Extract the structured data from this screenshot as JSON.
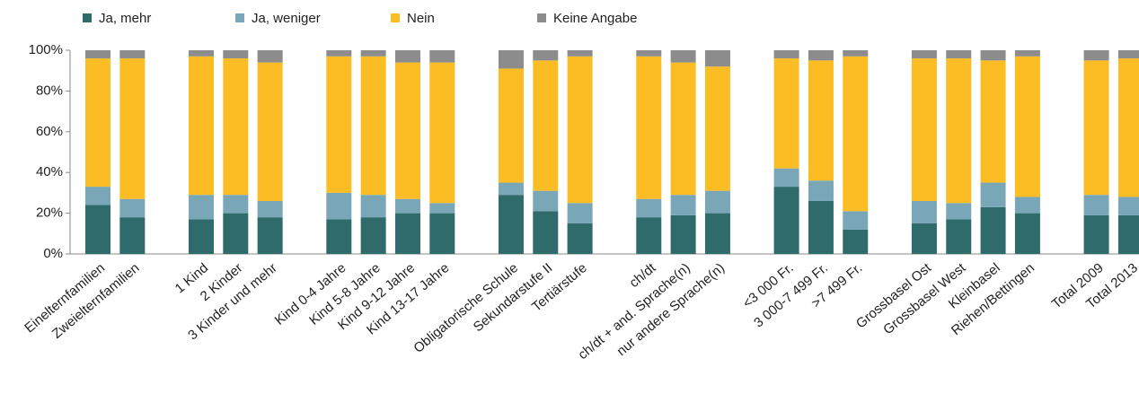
{
  "chart_data": {
    "type": "stacked_bar",
    "categories": [
      "Einelternfamilien",
      "Zweielternfamilien",
      null,
      "1 Kind",
      "2 Kinder",
      "3 Kinder und mehr",
      null,
      "Kind 0-4 Jahre",
      "Kind 5-8 Jahre",
      "Kind 9-12 Jahre",
      "Kind 13-17 Jahre",
      null,
      "Obligatorische Schule",
      "Sekundarstufe II",
      "Tertiärstufe",
      null,
      "ch/dt",
      "ch/dt + and. Sprache(n)",
      "nur andere Sprache(n)",
      null,
      "<3 000 Fr.",
      "3 000-7 499 Fr.",
      ">7 499 Fr.",
      null,
      "Grossbasel Ost",
      "Grossbasel West",
      "Kleinbasel",
      "Riehen/Bettingen",
      null,
      "Total 2009",
      "Total 2013"
    ],
    "series": [
      {
        "name": "Ja, mehr",
        "color": "#2f6b6b",
        "values": [
          24,
          18,
          null,
          17,
          20,
          18,
          null,
          17,
          18,
          20,
          20,
          null,
          29,
          21,
          15,
          null,
          18,
          19,
          20,
          null,
          33,
          26,
          12,
          null,
          15,
          17,
          23,
          20,
          null,
          19,
          19
        ]
      },
      {
        "name": "Ja, weniger",
        "color": "#7aa7b8",
        "values": [
          9,
          9,
          null,
          12,
          9,
          8,
          null,
          13,
          11,
          7,
          5,
          null,
          6,
          10,
          10,
          null,
          9,
          10,
          11,
          null,
          9,
          10,
          9,
          null,
          11,
          8,
          12,
          8,
          null,
          10,
          9
        ]
      },
      {
        "name": "Nein",
        "color": "#fbbc24",
        "values": [
          63,
          69,
          null,
          68,
          67,
          68,
          null,
          67,
          68,
          67,
          69,
          null,
          56,
          64,
          72,
          null,
          70,
          65,
          61,
          null,
          54,
          59,
          76,
          null,
          70,
          71,
          60,
          69,
          null,
          66,
          68
        ]
      },
      {
        "name": "Keine Angabe",
        "color": "#8c8c8c",
        "values": [
          4,
          4,
          null,
          3,
          4,
          6,
          null,
          3,
          3,
          6,
          6,
          null,
          9,
          5,
          3,
          null,
          3,
          6,
          8,
          null,
          4,
          5,
          3,
          null,
          4,
          4,
          5,
          3,
          null,
          5,
          4
        ]
      }
    ],
    "ylim": [
      0,
      100
    ],
    "yticks": [
      {
        "value": 0,
        "label": "0%"
      },
      {
        "value": 20,
        "label": "20%"
      },
      {
        "value": 40,
        "label": "40%"
      },
      {
        "value": 60,
        "label": "60%"
      },
      {
        "value": 80,
        "label": "80%"
      },
      {
        "value": 100,
        "label": "100%"
      }
    ]
  }
}
